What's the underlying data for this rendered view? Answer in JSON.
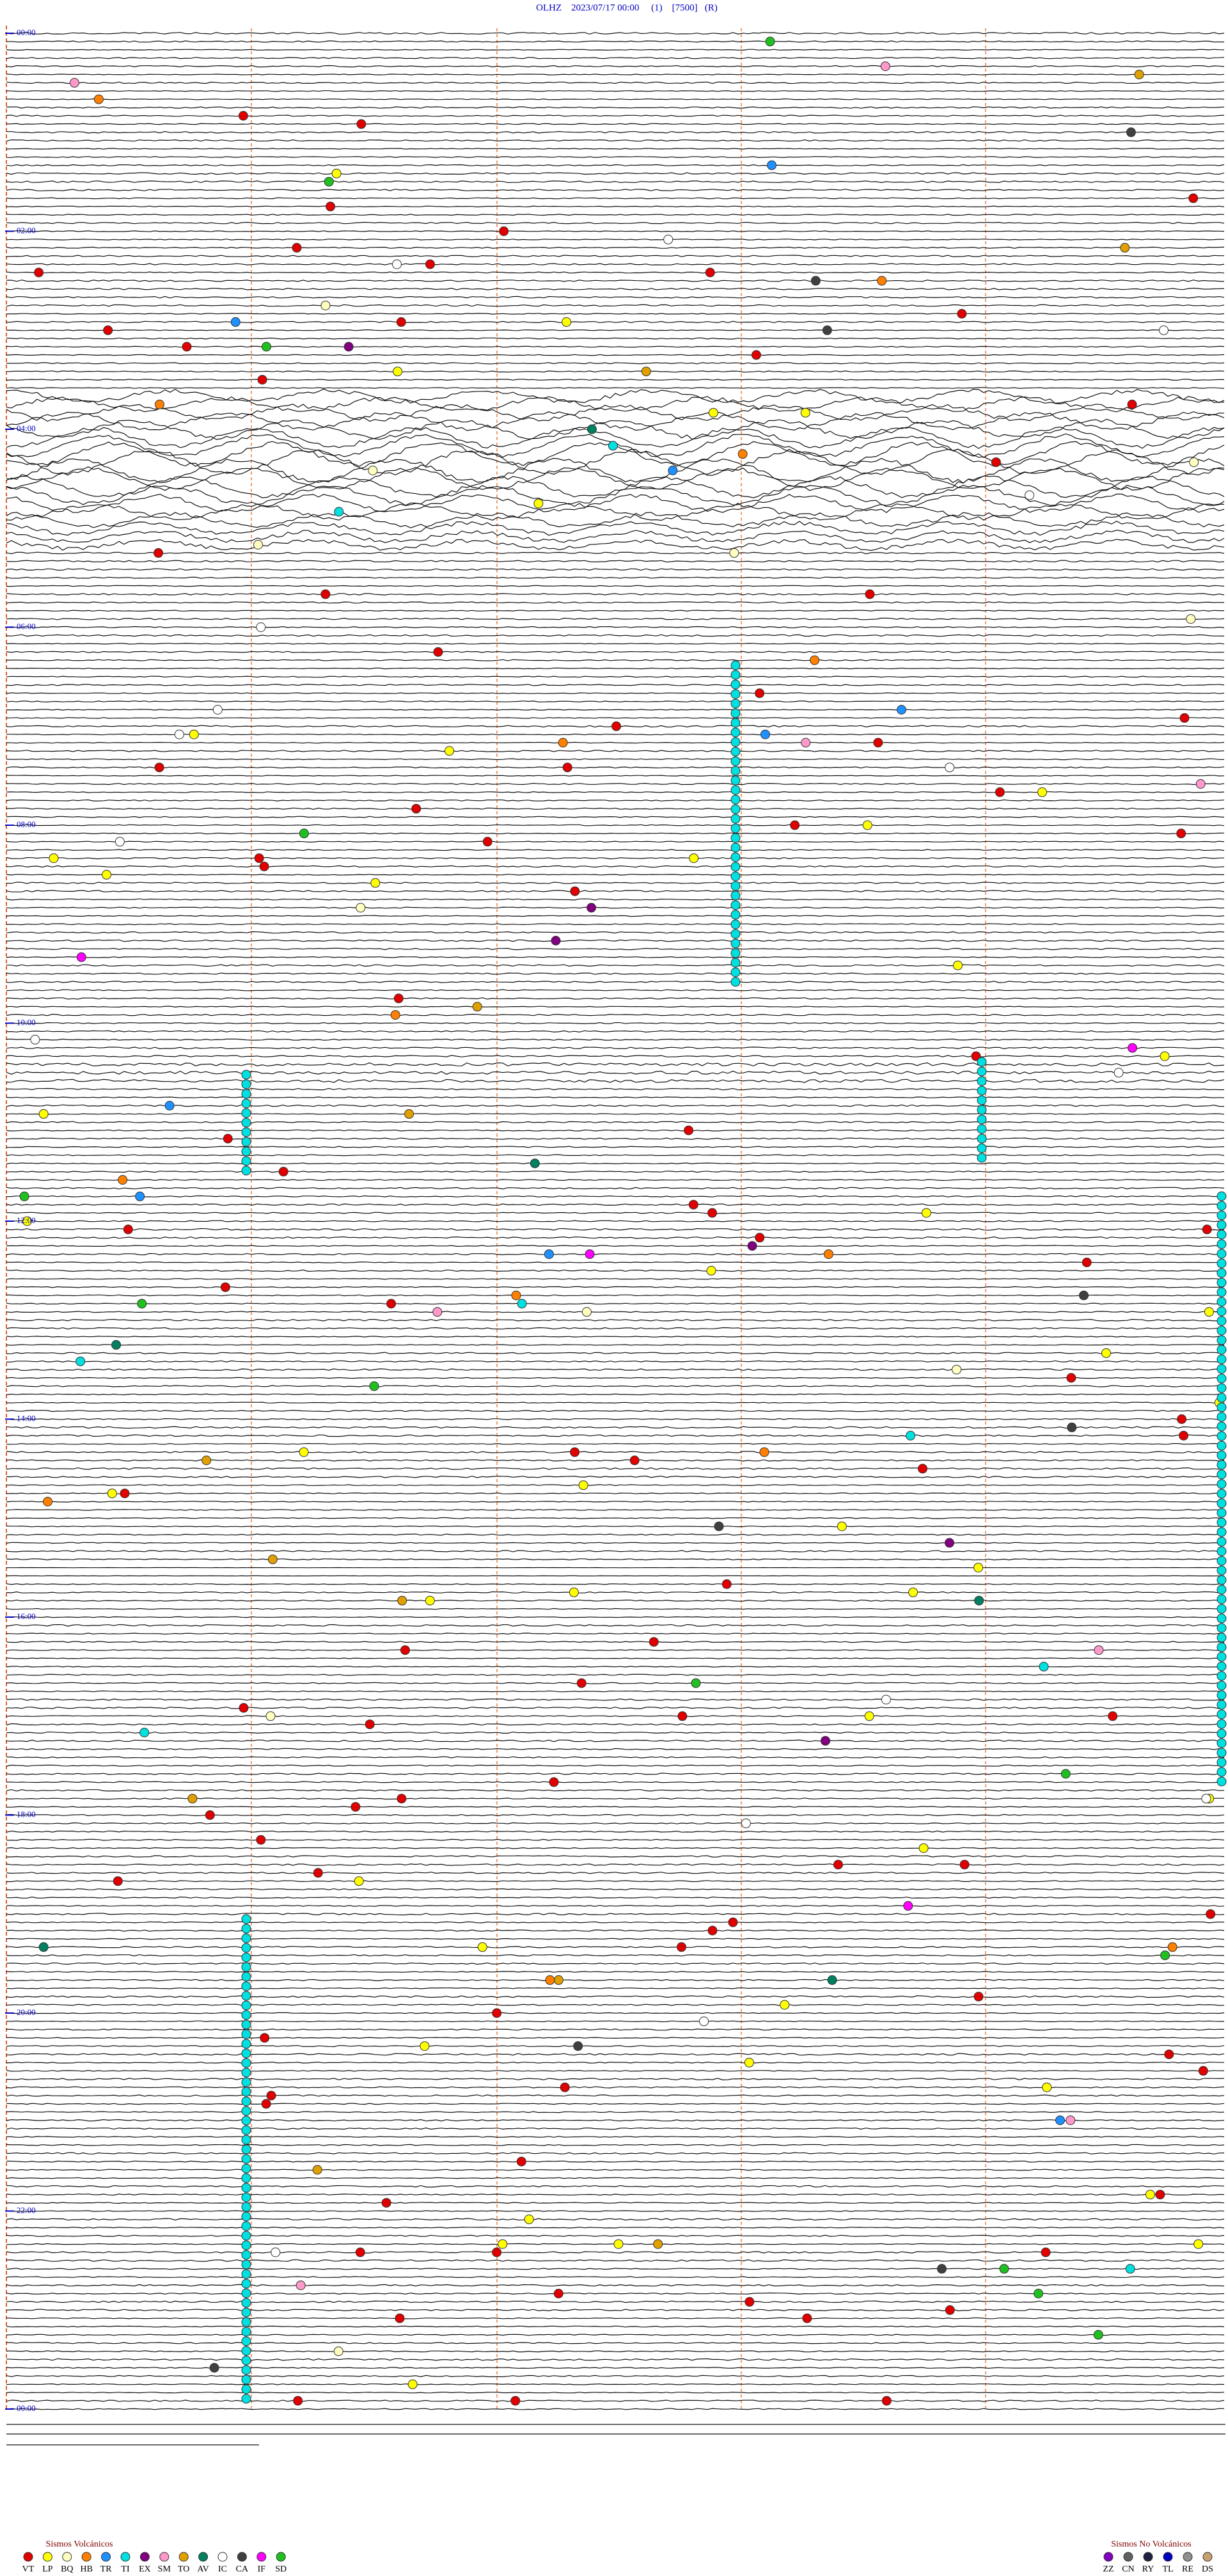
{
  "header": {
    "title": "OLHZ    2023/07/17 00:00     (1)    [7500]   (R)"
  },
  "time_labels": [
    "00:00",
    "02:00",
    "04:00",
    "06:00",
    "08:00",
    "10:00",
    "12:00",
    "14:00",
    "16:00",
    "18:00",
    "20:00",
    "22:00",
    "00:00"
  ],
  "legend_volcanic": {
    "title": "Sismos Volcánicos",
    "codes": [
      "VT",
      "LP",
      "BQ",
      "HB",
      "TR",
      "TI",
      "EX",
      "SM",
      "TO",
      "AV",
      "IC",
      "CA",
      "IF",
      "SD"
    ],
    "colors": [
      "#e00000",
      "#ffff00",
      "#ffffc0",
      "#ff8000",
      "#1e90ff",
      "#00e0e0",
      "#800080",
      "#ff99cc",
      "#e0a000",
      "#008060",
      "#ffffff",
      "#404040",
      "#ff00ff",
      "#20c020"
    ]
  },
  "legend_non_volcanic": {
    "title": "Sismos No Volcánicos",
    "codes": [
      "ZZ",
      "CN",
      "RY",
      "TL",
      "RE",
      "DS"
    ],
    "colors": [
      "#8000c0",
      "#606060",
      "#202040",
      "#0000c0",
      "#909090",
      "#c8a070"
    ]
  }
}
